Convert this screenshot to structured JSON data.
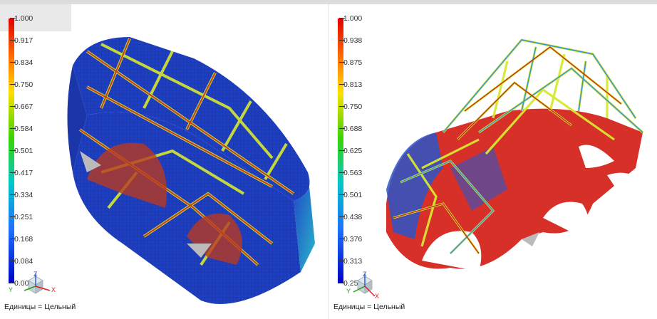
{
  "left_panel": {
    "legend_ticks": [
      "1.000",
      "0.917",
      "0.834",
      "0.750",
      "0.667",
      "0.584",
      "0.501",
      "0.417",
      "0.334",
      "0.251",
      "0.168",
      "0.084",
      "0.001"
    ],
    "units_label": "Единицы = Цельный",
    "axes": {
      "z": "Z",
      "y": "Y",
      "x": "X"
    }
  },
  "right_panel": {
    "legend_ticks": [
      "1.000",
      "0.938",
      "0.875",
      "0.813",
      "0.750",
      "0.688",
      "0.625",
      "0.563",
      "0.501",
      "0.438",
      "0.376",
      "0.313",
      "0.251"
    ],
    "units_label": "Единицы = Цельный",
    "axes": {
      "z": "Z",
      "y": "Y",
      "x": "X"
    }
  },
  "colors": {
    "max": "#e00000",
    "high": "#ffe000",
    "mid": "#39d400",
    "low_mid": "#00c8c8",
    "low": "#0000c8"
  }
}
